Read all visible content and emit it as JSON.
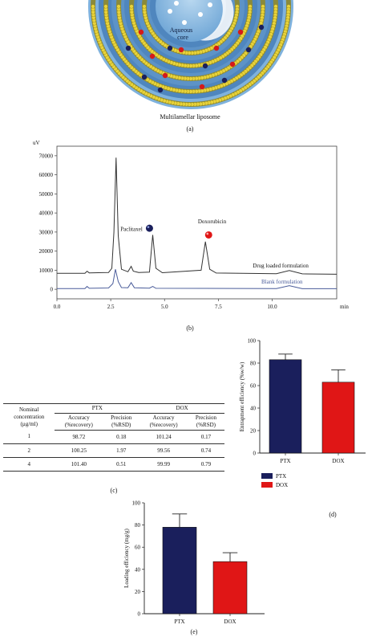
{
  "panel_a": {
    "core_label_line1": "Aqueous",
    "core_label_line2": "core",
    "title": "Multilamellar liposome",
    "letter": "(a)"
  },
  "panel_b": {
    "letter": "(b)",
    "annotations": {
      "paclitaxel": "Paclitaxel",
      "doxorubicin": "Doxorubicin",
      "drug_loaded": "Drug loaded formulation",
      "blank": "Blank formulation"
    }
  },
  "panel_c": {
    "letter": "(c)",
    "headers": {
      "nominal": [
        "Nominal",
        "concentration",
        "(µg/ml)"
      ],
      "ptx": "PTX",
      "dox": "DOX",
      "accuracy": [
        "Accuracy",
        "(%recovery)"
      ],
      "precision": [
        "Precision",
        "(%RSD)"
      ]
    },
    "rows": [
      {
        "conc": "1",
        "ptx_acc": "98.72",
        "ptx_prec": "0.18",
        "dox_acc": "101.24",
        "dox_prec": "0.17"
      },
      {
        "conc": "2",
        "ptx_acc": "100.25",
        "ptx_prec": "1.97",
        "dox_acc": "99.56",
        "dox_prec": "0.74"
      },
      {
        "conc": "4",
        "ptx_acc": "101.40",
        "ptx_prec": "0.51",
        "dox_acc": "99.99",
        "dox_prec": "0.79"
      }
    ]
  },
  "panel_d": {
    "letter": "(d)"
  },
  "panel_e": {
    "letter": "(e)"
  },
  "colors": {
    "ptx": "#1a1f5c",
    "dox": "#e01616",
    "trace_dark": "#333333",
    "trace_blue": "#4a5c9a"
  },
  "chart_data": [
    {
      "type": "line",
      "ylabel": "uV",
      "xlabel": "min",
      "xlim": [
        0,
        13
      ],
      "ylim": [
        -5000,
        75000
      ],
      "xticks": [
        "0.0",
        "2.5",
        "5.0",
        "7.5",
        "10.0"
      ],
      "xtick_values": [
        0,
        2.5,
        5,
        7.5,
        10
      ],
      "yticks": [
        "0",
        "10000",
        "20000",
        "30000",
        "40000",
        "50000",
        "60000",
        "70000"
      ],
      "ytick_values": [
        0,
        10000,
        20000,
        30000,
        40000,
        50000,
        60000,
        70000
      ],
      "series": [
        {
          "name": "Drug loaded formulation",
          "x": [
            0,
            1.3,
            1.4,
            1.5,
            2.4,
            2.55,
            2.65,
            2.75,
            2.85,
            3.0,
            3.3,
            3.45,
            3.55,
            3.8,
            4.3,
            4.45,
            4.6,
            4.9,
            6.7,
            6.9,
            7.1,
            7.4,
            10.2,
            10.8,
            11.4,
            13
          ],
          "y": [
            8400,
            8400,
            9500,
            8600,
            8800,
            11000,
            30000,
            69000,
            28000,
            10500,
            9200,
            12000,
            9500,
            8800,
            9000,
            28500,
            11000,
            8700,
            10000,
            25000,
            10500,
            8500,
            8200,
            9800,
            8100,
            7900
          ]
        },
        {
          "name": "Blank formulation",
          "x": [
            0,
            1.3,
            1.4,
            1.5,
            2.4,
            2.6,
            2.72,
            2.85,
            3.0,
            3.3,
            3.45,
            3.6,
            4.3,
            4.45,
            4.6,
            10.2,
            10.8,
            11.4,
            13
          ],
          "y": [
            400,
            400,
            1500,
            500,
            700,
            3000,
            10500,
            4000,
            900,
            800,
            3500,
            800,
            600,
            1500,
            500,
            400,
            1900,
            300,
            300
          ]
        }
      ]
    },
    {
      "type": "bar",
      "categories": [
        "PTX",
        "DOX"
      ],
      "values": [
        83,
        63
      ],
      "errors": [
        5,
        11
      ],
      "ylabel": "Entrapment efficiency (%w/w)",
      "ylim": [
        0,
        100
      ],
      "yticks": [
        "0",
        "20",
        "40",
        "60",
        "80",
        "100"
      ],
      "legend": [
        "PTX",
        "DOX"
      ],
      "legend_position": "bottom-left"
    },
    {
      "type": "bar",
      "categories": [
        "PTX",
        "DOX"
      ],
      "values": [
        78,
        47
      ],
      "errors": [
        12,
        8
      ],
      "ylabel": "Loading efficiency (mg/g)",
      "ylim": [
        0,
        100
      ],
      "yticks": [
        "0",
        "20",
        "40",
        "60",
        "80",
        "100"
      ]
    }
  ]
}
